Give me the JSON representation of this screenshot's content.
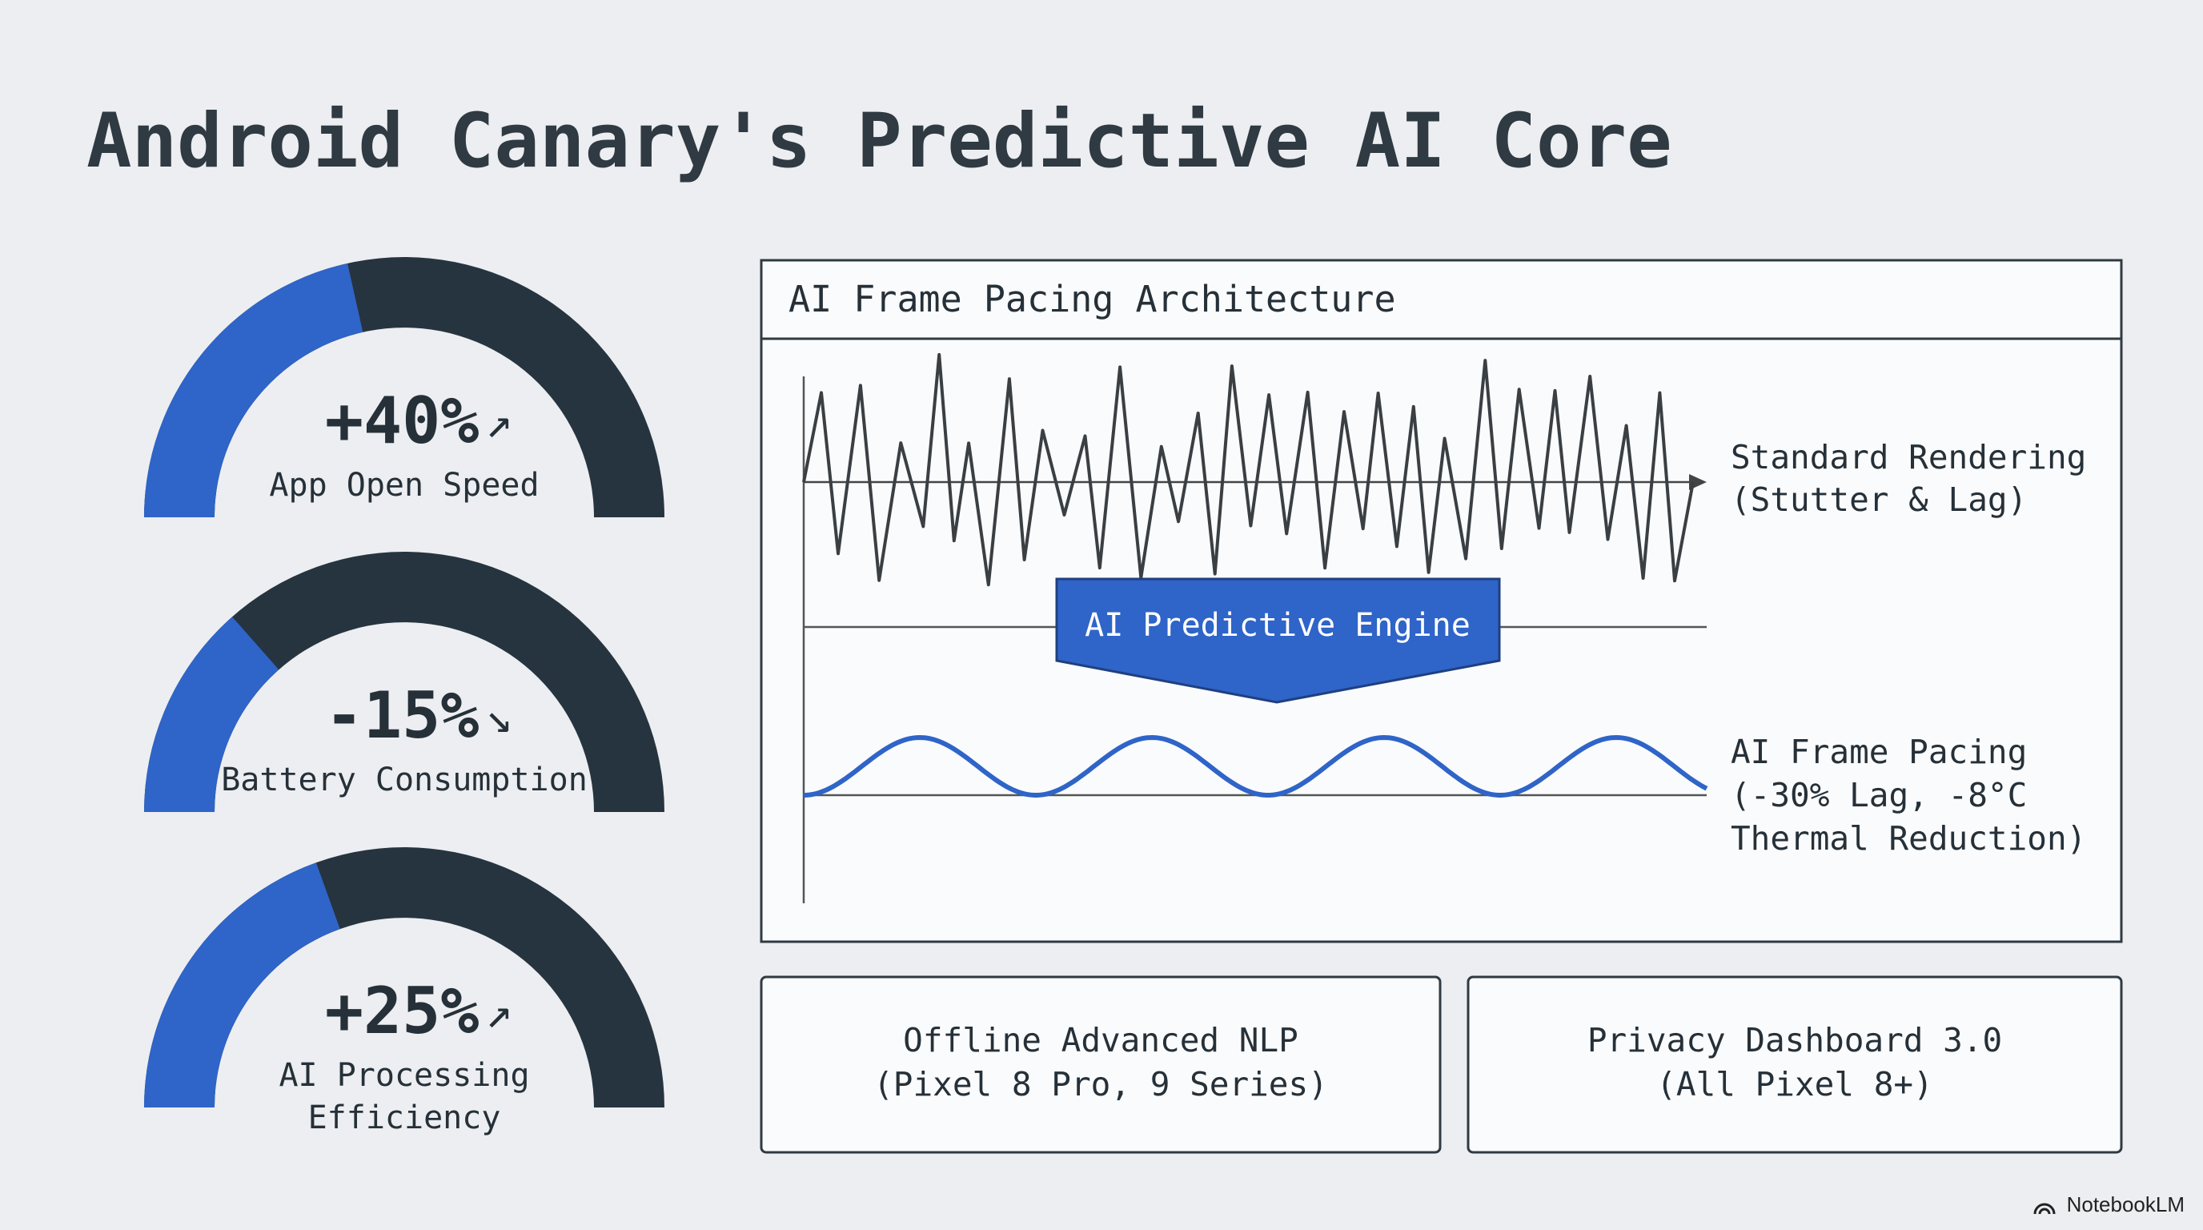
{
  "title": "Android Canary's Predictive AI Core",
  "gauges": [
    {
      "value": "+40%",
      "trend": "↗",
      "label": [
        "App Open Speed"
      ]
    },
    {
      "value": "-15%",
      "trend": "↘",
      "label": [
        "Battery Consumption"
      ]
    },
    {
      "value": "+25%",
      "trend": "↗",
      "label": [
        "AI Processing",
        "Efficiency"
      ]
    }
  ],
  "panel": {
    "title": "AI Frame Pacing Architecture",
    "engine": "AI Predictive Engine",
    "standard": [
      "Standard Rendering",
      "(Stutter & Lag)"
    ],
    "ai": [
      "AI Frame Pacing",
      "(-30% Lag, -8°C",
      "Thermal Reduction)"
    ]
  },
  "features": [
    {
      "lines": [
        "Offline Advanced NLP",
        "(Pixel 8 Pro, 9 Series)"
      ]
    },
    {
      "lines": [
        "Privacy Dashboard 3.0",
        "(All Pixel 8+)"
      ]
    }
  ],
  "footer": "NotebookLM"
}
